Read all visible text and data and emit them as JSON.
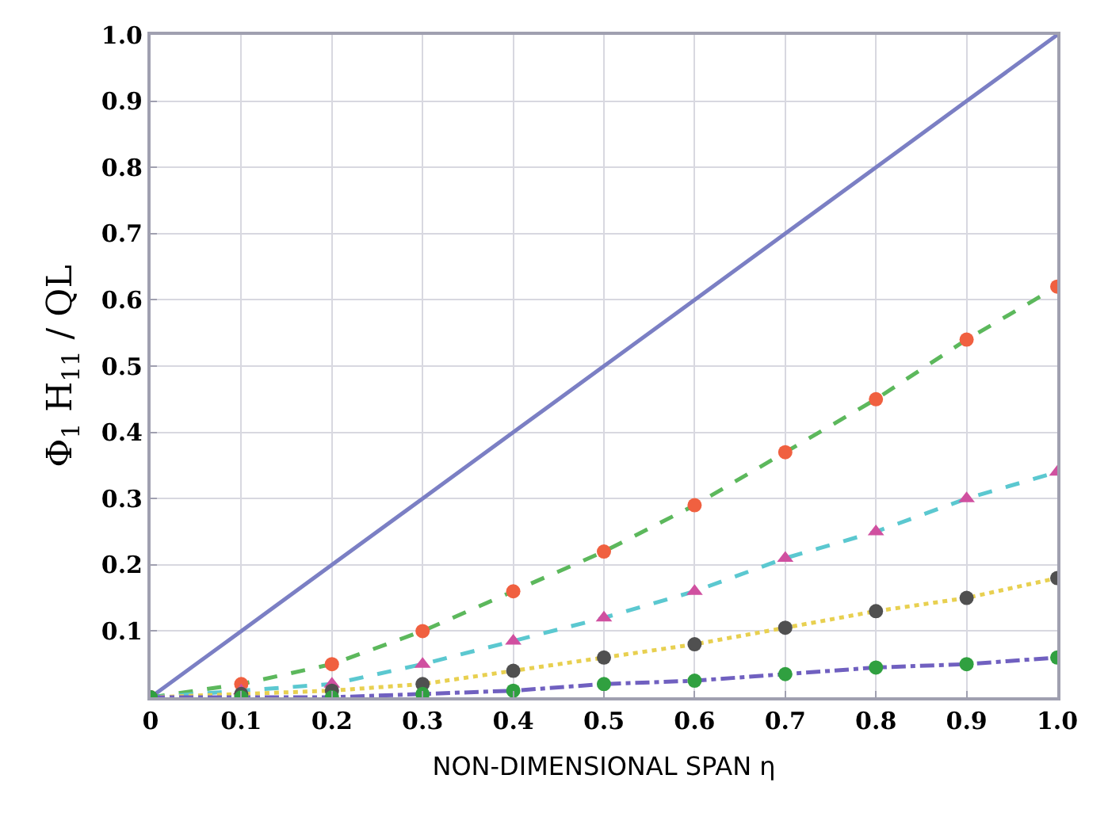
{
  "chart_data": {
    "type": "line",
    "xlabel": "NON-DIMENSIONAL SPAN η",
    "ylabel": "Φ$_{1}$ H$_{11}$ / QL",
    "x": [
      0,
      0.1,
      0.2,
      0.3,
      0.4,
      0.5,
      0.6,
      0.7,
      0.8,
      0.9,
      1.0
    ],
    "series": [
      {
        "color": "#7b7fc4",
        "line_style": "solid",
        "marker": "none",
        "values": [
          0,
          0.1,
          0.2,
          0.3,
          0.4,
          0.5,
          0.6,
          0.7,
          0.8,
          0.9,
          1.0
        ]
      },
      {
        "color": "#5cb85c",
        "line_style": "dashed",
        "marker": "circle",
        "colors": [
          "#f06040",
          "#f06040",
          "#f06040",
          "#f06040",
          "#f06040",
          "#f06040",
          "#f06040",
          "#f06040",
          "#f06040",
          "#f06040",
          "#f06040"
        ],
        "values": [
          0,
          0.02,
          0.05,
          0.1,
          0.16,
          0.22,
          0.29,
          0.37,
          0.45,
          0.54,
          0.62
        ]
      },
      {
        "color": "#5bc8d0",
        "line_style": "dashed",
        "marker": "triangle",
        "colors": [
          "#d050a0",
          "#d050a0",
          "#d050a0",
          "#d050a0",
          "#d050a0",
          "#d050a0",
          "#d050a0",
          "#d050a0",
          "#d050a0",
          "#d050a0",
          "#d050a0"
        ],
        "values": [
          0,
          0.01,
          0.02,
          0.05,
          0.085,
          0.12,
          0.16,
          0.21,
          0.25,
          0.3,
          0.34
        ]
      },
      {
        "color": "#e8d050",
        "line_style": "dotted",
        "marker": "circle",
        "colors": [
          "#505050",
          "#505050",
          "#505050",
          "#505050",
          "#505050",
          "#505050",
          "#505050",
          "#505050",
          "#505050",
          "#505050",
          "#505050"
        ],
        "values": [
          0,
          0.005,
          0.01,
          0.02,
          0.04,
          0.06,
          0.08,
          0.105,
          0.13,
          0.15,
          0.18
        ]
      },
      {
        "color": "#7060c0",
        "line_style": "dashdot",
        "marker": "circle",
        "colors": [
          "#30a040",
          "#30a040",
          "#30a040",
          "#30a040",
          "#30a040",
          "#30a040",
          "#30a040",
          "#30a040",
          "#30a040",
          "#30a040",
          "#30a040"
        ],
        "values": [
          0,
          0,
          0,
          0.005,
          0.01,
          0.02,
          0.025,
          0.035,
          0.045,
          0.05,
          0.06
        ]
      }
    ],
    "xlim": [
      0,
      1.0
    ],
    "ylim": [
      0,
      1.0
    ],
    "xticks": [
      0,
      0.1,
      0.2,
      0.3,
      0.4,
      0.5,
      0.6,
      0.7,
      0.8,
      0.9,
      {
        "value": 1.0,
        "label": "1.0"
      }
    ],
    "yticks": [
      0.1,
      0.2,
      0.3,
      0.4,
      0.5,
      0.6,
      0.7,
      0.8,
      0.9,
      {
        "value": 1.0,
        "label": "1.0"
      }
    ],
    "grid": true
  }
}
